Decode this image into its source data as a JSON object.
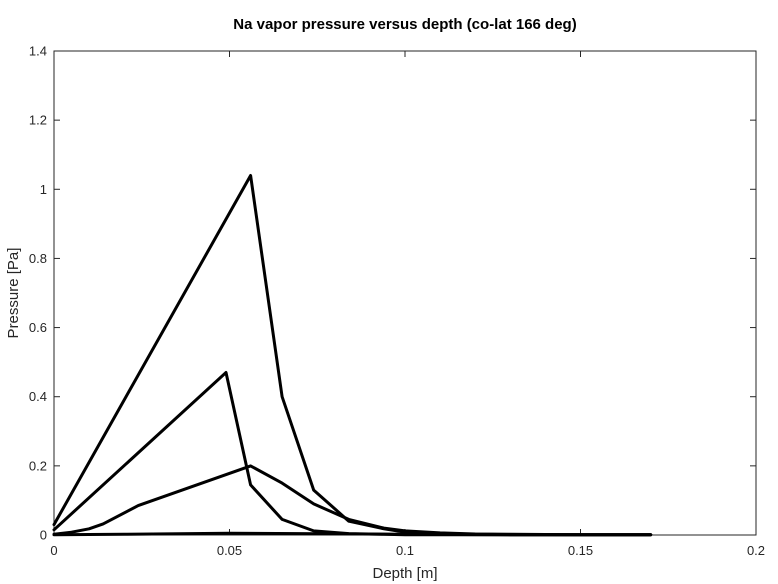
{
  "chart_data": {
    "type": "line",
    "title": "Na vapor pressure versus depth (co-lat 166 deg)",
    "xlabel": "Depth [m]",
    "ylabel": "Pressure [Pa]",
    "xlim": [
      0,
      0.2
    ],
    "ylim": [
      0,
      1.4
    ],
    "xticks": [
      0,
      0.05,
      0.1,
      0.15,
      0.2
    ],
    "xtick_labels": [
      "0",
      "0.05",
      "0.1",
      "0.15",
      "0.2"
    ],
    "yticks": [
      0,
      0.2,
      0.4,
      0.6,
      0.8,
      1.0,
      1.2,
      1.4
    ],
    "ytick_labels": [
      "0",
      "0.2",
      "0.4",
      "0.6",
      "0.8",
      "1",
      "1.2",
      "1.4"
    ],
    "grid": false,
    "line_color": "#000000",
    "series": [
      {
        "x": [
          0,
          0.056,
          0.065,
          0.074,
          0.084,
          0.094,
          0.1,
          0.11,
          0.12,
          0.13,
          0.15,
          0.17
        ],
        "y": [
          0.03,
          1.04,
          0.4,
          0.13,
          0.04,
          0.018,
          0.008,
          0.004,
          0.002,
          0.001,
          0.001,
          0.001
        ]
      },
      {
        "x": [
          0,
          0.049,
          0.056,
          0.065,
          0.074,
          0.084,
          0.094,
          0.1,
          0.11,
          0.13,
          0.17
        ],
        "y": [
          0.015,
          0.47,
          0.145,
          0.045,
          0.012,
          0.004,
          0.002,
          0.001,
          0.001,
          0.001,
          0.001
        ]
      },
      {
        "x": [
          0,
          0.005,
          0.01,
          0.014,
          0.024,
          0.056,
          0.065,
          0.074,
          0.084,
          0.094,
          0.1,
          0.11,
          0.12,
          0.13,
          0.15,
          0.17
        ],
        "y": [
          0.002,
          0.008,
          0.018,
          0.032,
          0.085,
          0.2,
          0.15,
          0.09,
          0.045,
          0.02,
          0.012,
          0.006,
          0.003,
          0.002,
          0.001,
          0.001
        ]
      },
      {
        "x": [
          0,
          0.02,
          0.05,
          0.07,
          0.1,
          0.13,
          0.17
        ],
        "y": [
          0.001,
          0.002,
          0.005,
          0.004,
          0.002,
          0.001,
          0.001
        ]
      }
    ]
  }
}
